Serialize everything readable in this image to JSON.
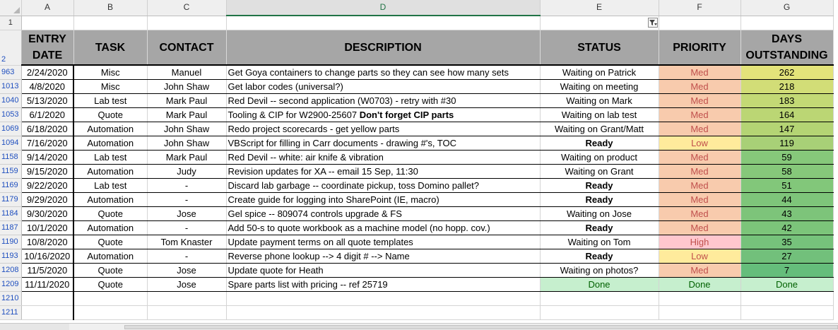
{
  "columns": [
    "A",
    "B",
    "C",
    "D",
    "E",
    "F",
    "G"
  ],
  "selected_column": "D",
  "header_row_number": "2",
  "first_row_number": "1",
  "headers": {
    "entry_date": "ENTRY DATE",
    "task": "TASK",
    "contact": "CONTACT",
    "description": "DESCRIPTION",
    "status": "STATUS",
    "priority": "PRIORITY",
    "days": "DAYS OUTSTANDING"
  },
  "colors": {
    "header_fill": "#a6a6a6",
    "priority_med": "#f8cbad",
    "priority_low": "#ffeb9c",
    "priority_high": "#ffc7ce",
    "done_fill": "#c6efce",
    "done_text": "#006100",
    "priority_text": "#c0504d",
    "days_scale_high": "#e3e37a",
    "days_scale_low": "#63be7b"
  },
  "rows": [
    {
      "row": "963",
      "date": "2/24/2020",
      "task": "Misc",
      "contact": "Manuel",
      "desc": "Get Goya containers to change parts so they can see how many sets",
      "desc_bold": "",
      "status": "Waiting on Patrick",
      "status_bold": false,
      "priority": "Med",
      "days": "262",
      "days_color": "#e3e37a"
    },
    {
      "row": "1013",
      "date": "4/8/2020",
      "task": "Misc",
      "contact": "John Shaw",
      "desc": "Get labor codes (universal?)",
      "desc_bold": "",
      "status": "Waiting on meeting",
      "status_bold": false,
      "priority": "Med",
      "days": "218",
      "days_color": "#d2dd77"
    },
    {
      "row": "1040",
      "date": "5/13/2020",
      "task": "Lab test",
      "contact": "Mark Paul",
      "desc": "Red Devil -- second application (W0703) - retry with #30",
      "desc_bold": "",
      "status": "Waiting on Mark",
      "status_bold": false,
      "priority": "Med",
      "days": "183",
      "days_color": "#c3d975"
    },
    {
      "row": "1053",
      "date": "6/1/2020",
      "task": "Quote",
      "contact": "Mark Paul",
      "desc": "Tooling  & CIP for W2900-25607 ",
      "desc_bold": "Don't forget CIP parts",
      "status": "Waiting on lab test",
      "status_bold": false,
      "priority": "Med",
      "days": "164",
      "days_color": "#bbd674"
    },
    {
      "row": "1069",
      "date": "6/18/2020",
      "task": "Automation",
      "contact": "John Shaw",
      "desc": "Redo project scorecards - get yellow parts",
      "desc_bold": "",
      "status": "Waiting on Grant/Matt",
      "status_bold": false,
      "priority": "Med",
      "days": "147",
      "days_color": "#b4d474"
    },
    {
      "row": "1094",
      "date": "7/16/2020",
      "task": "Automation",
      "contact": "John Shaw",
      "desc": "VBScript for filling in Carr documents - drawing #'s, TOC",
      "desc_bold": "",
      "status": "Ready",
      "status_bold": true,
      "priority": "Low",
      "days": "119",
      "days_color": "#a8d077"
    },
    {
      "row": "1158",
      "date": "9/14/2020",
      "task": "Lab test",
      "contact": "Mark Paul",
      "desc": "Red Devil -- white: air knife & vibration",
      "desc_bold": "",
      "status": "Waiting on product",
      "status_bold": false,
      "priority": "Med",
      "days": "59",
      "days_color": "#86c87a"
    },
    {
      "row": "1159",
      "date": "9/15/2020",
      "task": "Automation",
      "contact": "Judy",
      "desc": "Revision updates for XA -- email 15 Sep, 11:30",
      "desc_bold": "",
      "status": "Waiting on Grant",
      "status_bold": false,
      "priority": "Med",
      "days": "58",
      "days_color": "#86c87a"
    },
    {
      "row": "1169",
      "date": "9/22/2020",
      "task": "Lab test",
      "contact": "-",
      "desc": "Discard lab garbage -- coordinate pickup, toss Domino pallet?",
      "desc_bold": "",
      "status": "Ready",
      "status_bold": true,
      "priority": "Med",
      "days": "51",
      "days_color": "#82c77a"
    },
    {
      "row": "1179",
      "date": "9/29/2020",
      "task": "Automation",
      "contact": "-",
      "desc": "Create guide for logging into SharePoint (IE, macro)",
      "desc_bold": "",
      "status": "Ready",
      "status_bold": true,
      "priority": "Med",
      "days": "44",
      "days_color": "#7ec57a"
    },
    {
      "row": "1184",
      "date": "9/30/2020",
      "task": "Quote",
      "contact": "Jose",
      "desc": "Gel spice -- 809074 controls upgrade & FS",
      "desc_bold": "",
      "status": "Waiting on Jose",
      "status_bold": false,
      "priority": "Med",
      "days": "43",
      "days_color": "#7dc47a"
    },
    {
      "row": "1187",
      "date": "10/1/2020",
      "task": "Automation",
      "contact": "-",
      "desc": "Add 50-s to quote workbook as a machine model (no hopp. cov.)",
      "desc_bold": "",
      "status": "Ready",
      "status_bold": true,
      "priority": "Med",
      "days": "42",
      "days_color": "#7cc47a"
    },
    {
      "row": "1190",
      "date": "10/8/2020",
      "task": "Quote",
      "contact": "Tom Knaster",
      "desc": "Update payment terms on all quote templates",
      "desc_bold": "",
      "status": "Waiting on Tom",
      "status_bold": false,
      "priority": "High",
      "days": "35",
      "days_color": "#76c27b"
    },
    {
      "row": "1193",
      "date": "10/16/2020",
      "task": "Automation",
      "contact": "-",
      "desc": "Reverse phone lookup --> 4 digit # --> Name",
      "desc_bold": "",
      "status": "Ready",
      "status_bold": true,
      "priority": "Low",
      "days": "27",
      "days_color": "#72c07b"
    },
    {
      "row": "1208",
      "date": "11/5/2020",
      "task": "Quote",
      "contact": "Jose",
      "desc": "Update quote for Heath",
      "desc_bold": "",
      "status": "Waiting on photos?",
      "status_bold": false,
      "priority": "Med",
      "days": "7",
      "days_color": "#65bd7b"
    },
    {
      "row": "1209",
      "date": "11/11/2020",
      "task": "Quote",
      "contact": "Jose",
      "desc": "Spare parts list with pricing -- ref 25719",
      "desc_bold": "",
      "status": "Done",
      "status_bold": false,
      "priority": "Done",
      "days": "Done",
      "days_color": "#c6efce",
      "done": true
    }
  ],
  "blank_rows": [
    "1210",
    "1211"
  ]
}
